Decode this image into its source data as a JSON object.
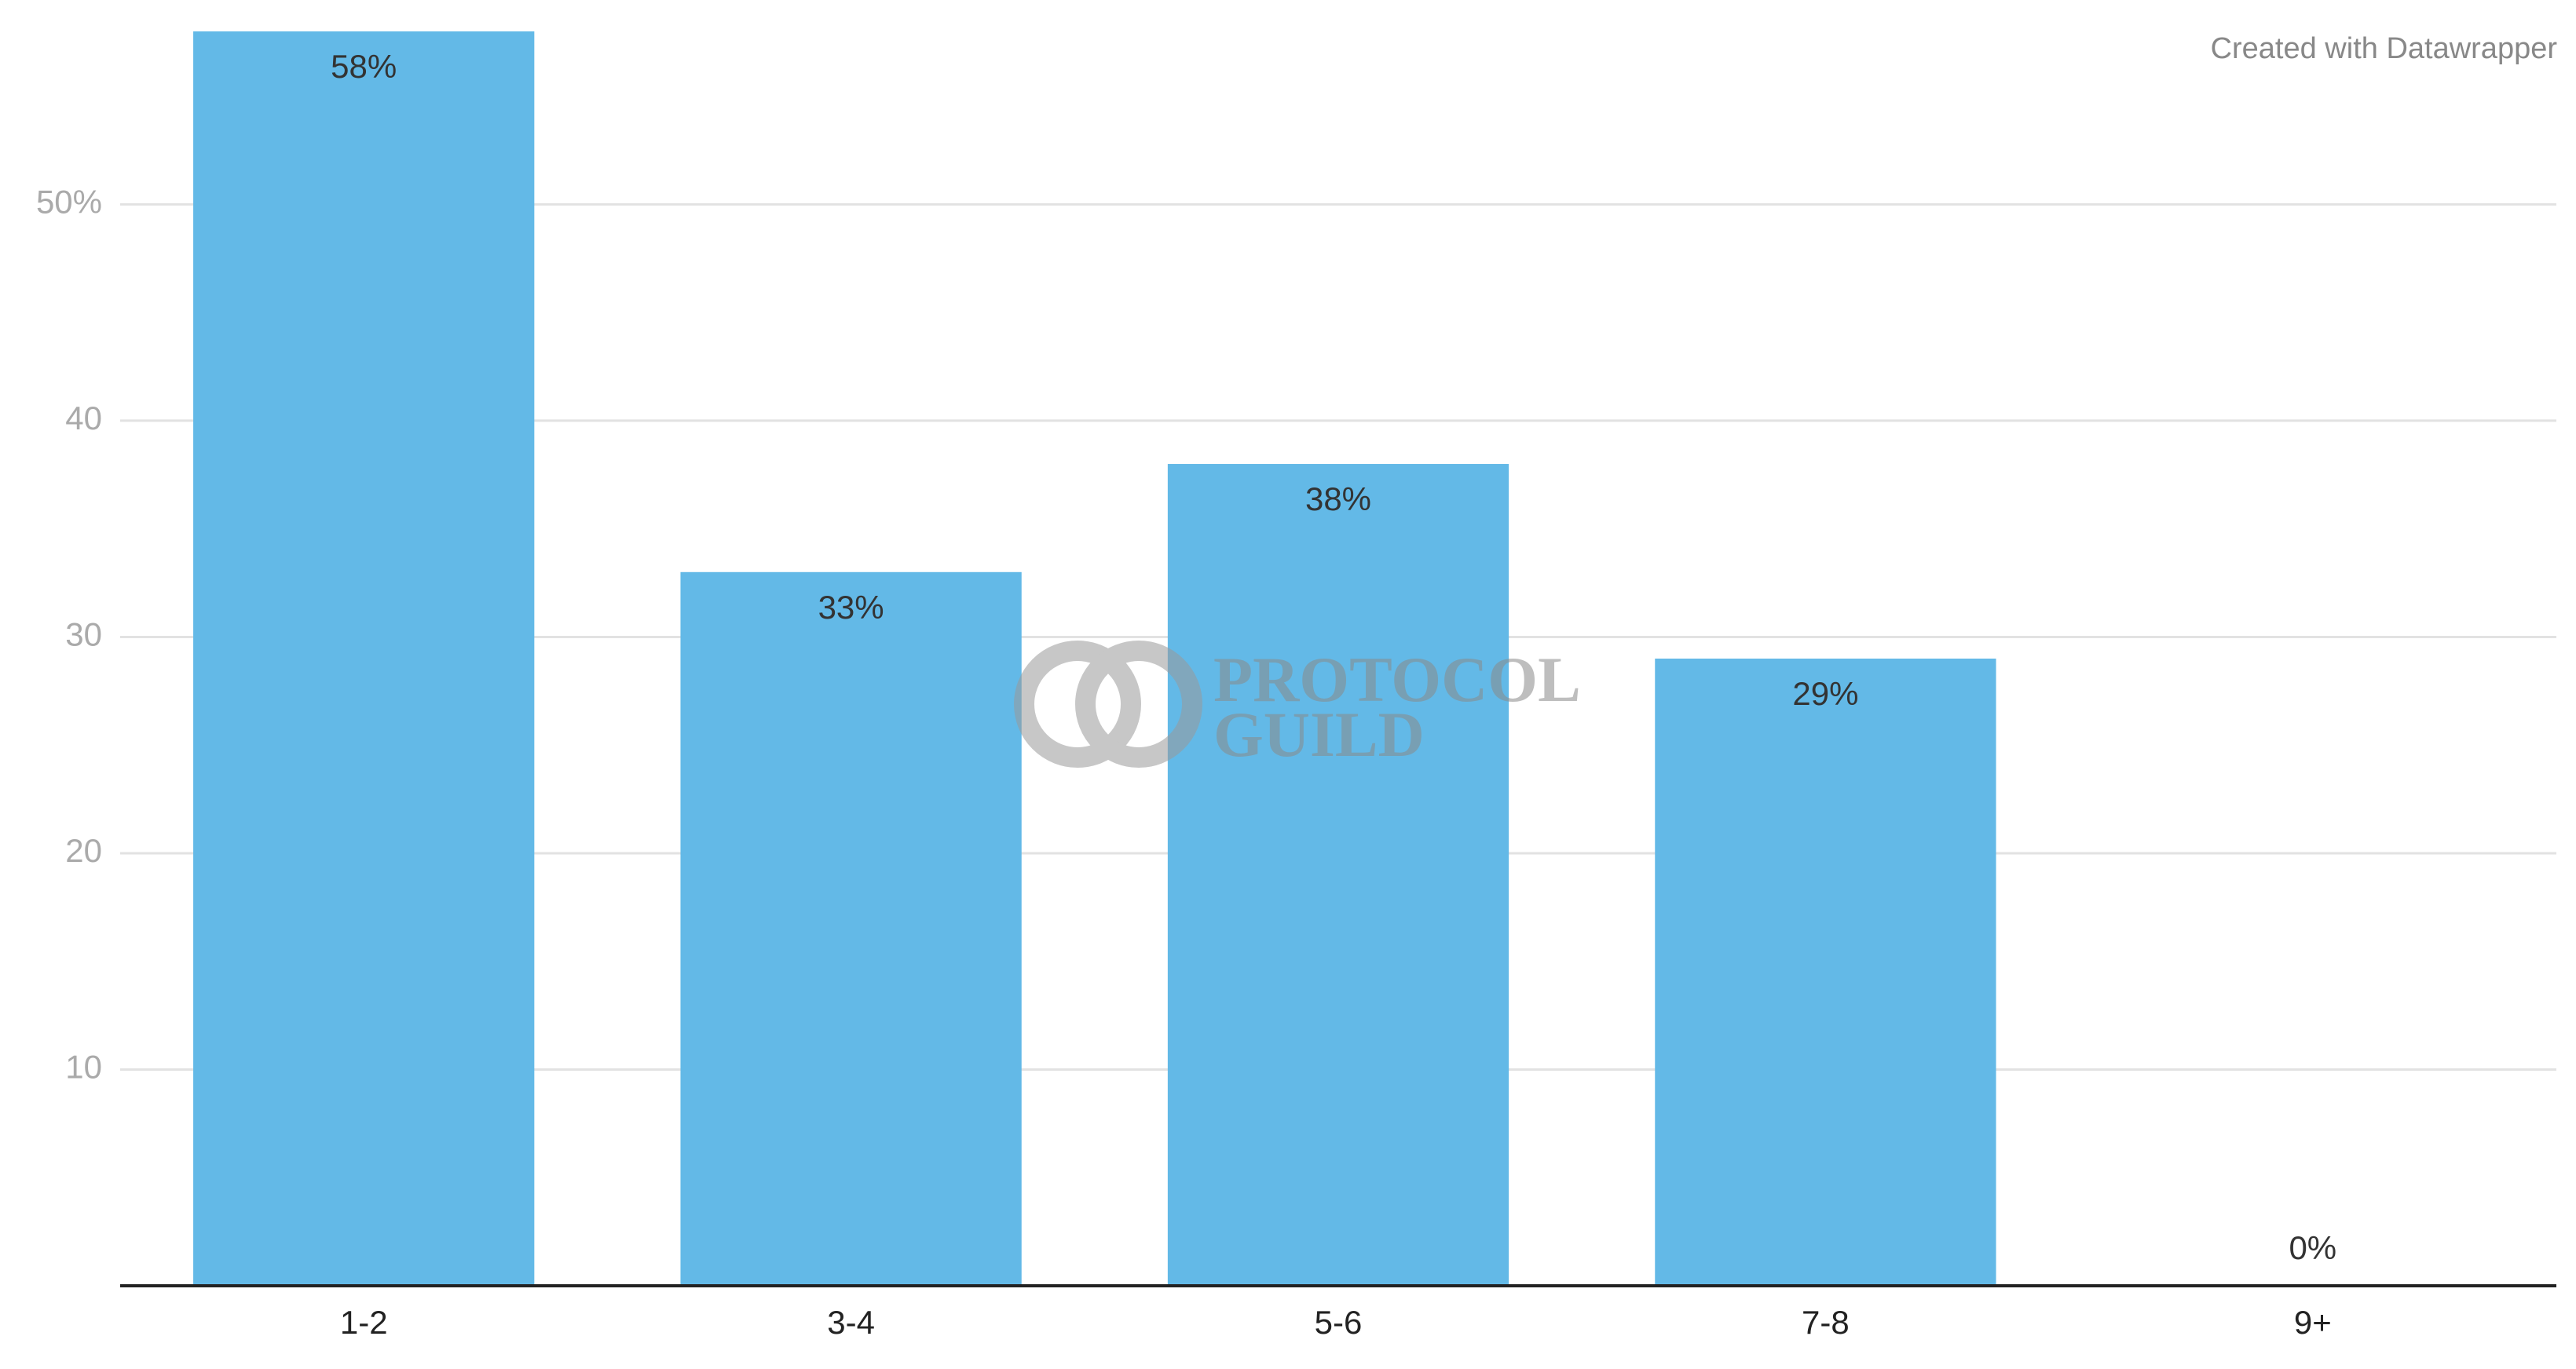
{
  "chart_data": {
    "type": "bar",
    "credit": "Created with Datawrapper",
    "watermark": [
      "PROTOCOL",
      "GUILD"
    ],
    "categories": [
      "1-2",
      "3-4",
      "5-6",
      "7-8",
      "9+"
    ],
    "values": [
      58,
      33,
      38,
      29,
      0
    ],
    "value_labels": [
      "58%",
      "33%",
      "38%",
      "29%",
      "0%"
    ],
    "color": "#63b9e7",
    "ylim": [
      0,
      58
    ],
    "yticks": [
      10,
      20,
      30,
      40,
      {
        "value": 50,
        "label": "50%"
      }
    ],
    "grid": true
  }
}
